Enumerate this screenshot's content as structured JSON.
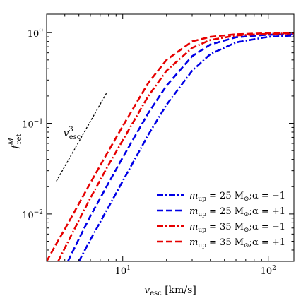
{
  "chart_data": {
    "type": "line",
    "xlabel": "v_esc [km/s]",
    "xlabel_main": "v",
    "xlabel_sub": "esc",
    "xlabel_unit": " [km/s]",
    "ylabel_main": "f",
    "ylabel_sub": "ret",
    "ylabel_sup": "M",
    "x_scale": "log",
    "y_scale": "log",
    "xlim": [
      3,
      150
    ],
    "ylim": [
      0.003,
      1.6
    ],
    "x_ticks": [
      {
        "value": 10,
        "base": "10",
        "exp": "1"
      },
      {
        "value": 100,
        "base": "10",
        "exp": "2"
      }
    ],
    "y_ticks": [
      {
        "value": 0.01,
        "base": "10",
        "exp": "−2"
      },
      {
        "value": 0.1,
        "base": "10",
        "exp": "−1"
      },
      {
        "value": 1,
        "base": "10",
        "exp": "0"
      }
    ],
    "grid": false,
    "legend_position": "bottom-right",
    "annotation": {
      "main": "v",
      "sub": "esc",
      "sup": "3",
      "x": [
        3.5,
        7.8
      ],
      "y": [
        0.023,
        0.22
      ]
    },
    "series": [
      {
        "name": "m_up = 25 M_⊙; α = −1",
        "label_var": "m",
        "label_sub": "up",
        "label_rest": " = 25 M",
        "label_sun": "⊙",
        "label_alpha": ";α = −1",
        "color": "#0000e6",
        "dash": "dashdot",
        "x": [
          5.0,
          6,
          8,
          10,
          15,
          20,
          30,
          40,
          60,
          100,
          150
        ],
        "y": [
          0.003,
          0.0052,
          0.012,
          0.023,
          0.075,
          0.16,
          0.38,
          0.58,
          0.78,
          0.9,
          0.93
        ]
      },
      {
        "name": "m_up = 25 M_⊙; α = +1",
        "label_var": "m",
        "label_sub": "up",
        "label_rest": " = 25 M",
        "label_sun": "⊙",
        "label_alpha": ";α = +1",
        "color": "#0000e6",
        "dash": "dashed",
        "x": [
          4.2,
          5,
          6,
          8,
          10,
          15,
          20,
          30,
          40,
          60,
          100,
          150
        ],
        "y": [
          0.003,
          0.0053,
          0.0095,
          0.022,
          0.042,
          0.13,
          0.26,
          0.55,
          0.74,
          0.89,
          0.95,
          0.96
        ]
      },
      {
        "name": "m_up = 35 M_⊙; α = −1",
        "label_var": "m",
        "label_sub": "up",
        "label_rest": " = 35 M",
        "label_sun": "⊙",
        "label_alpha": ";α = −1",
        "color": "#e60000",
        "dash": "dashdot",
        "x": [
          3.6,
          4,
          5,
          6,
          8,
          10,
          15,
          20,
          30,
          40,
          60,
          100,
          150
        ],
        "y": [
          0.003,
          0.0042,
          0.0085,
          0.015,
          0.035,
          0.065,
          0.2,
          0.38,
          0.68,
          0.83,
          0.93,
          0.97,
          0.98
        ]
      },
      {
        "name": "m_up = 35 M_⊙; α = +1",
        "label_var": "m",
        "label_sub": "up",
        "label_rest": " = 35 M",
        "label_sun": "⊙",
        "label_alpha": ";α = +1",
        "color": "#e60000",
        "dash": "dashed",
        "x": [
          3.0,
          3.5,
          4,
          5,
          6,
          8,
          10,
          15,
          20,
          30,
          40,
          60,
          100,
          150
        ],
        "y": [
          0.003,
          0.0047,
          0.0068,
          0.013,
          0.022,
          0.05,
          0.093,
          0.28,
          0.5,
          0.8,
          0.9,
          0.96,
          0.985,
          0.99
        ]
      }
    ]
  }
}
